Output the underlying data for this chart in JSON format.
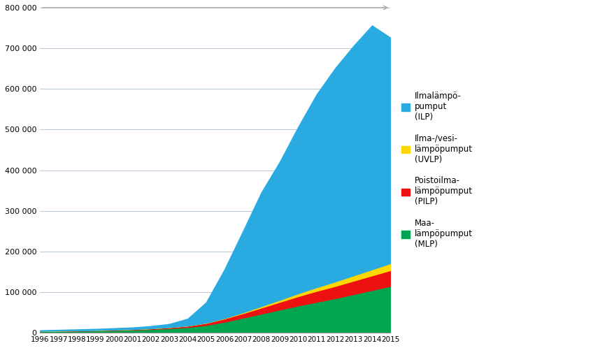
{
  "years": [
    1996,
    1997,
    1998,
    1999,
    2000,
    2001,
    2002,
    2003,
    2004,
    2005,
    2006,
    2007,
    2008,
    2009,
    2010,
    2011,
    2012,
    2013,
    2014,
    2015
  ],
  "MLP": [
    4000,
    4500,
    5000,
    5500,
    6500,
    7500,
    9000,
    11000,
    14000,
    19000,
    27000,
    37000,
    47000,
    57000,
    67000,
    76000,
    85000,
    95000,
    105000,
    115000
  ],
  "PILP": [
    500,
    600,
    700,
    900,
    1100,
    1400,
    1800,
    2500,
    3500,
    5000,
    8000,
    11000,
    15000,
    19000,
    23000,
    27000,
    30000,
    33000,
    36000,
    39000
  ],
  "UVLP": [
    0,
    0,
    0,
    0,
    0,
    0,
    0,
    0,
    0,
    500,
    1000,
    2000,
    3500,
    5000,
    7000,
    9000,
    11000,
    13000,
    15000,
    17000
  ],
  "ILP": [
    1500,
    2000,
    2500,
    3000,
    3500,
    4000,
    5500,
    8000,
    17000,
    50000,
    120000,
    200000,
    280000,
    340000,
    410000,
    475000,
    525000,
    565000,
    600000,
    555000
  ],
  "colors": {
    "ILP": "#29ABE2",
    "UVLP": "#FFD700",
    "PILP": "#EE1111",
    "MLP": "#00A550"
  },
  "legend_labels": {
    "ILP": "Ilmalämpö-\npumput\n(ILP)",
    "UVLP": "Ilma-/vesi-\nlämpöpumput\n(UVLP)",
    "PILP": "Poistoilma-\nlämpöpumput\n(PILP)",
    "MLP": "Maa-\nlämpöpumput\n(MLP)"
  },
  "ylim": [
    0,
    800000
  ],
  "yticks": [
    0,
    100000,
    200000,
    300000,
    400000,
    500000,
    600000,
    700000,
    800000
  ],
  "background_color": "#FFFFFF",
  "grid_color": "#B8C8D8"
}
